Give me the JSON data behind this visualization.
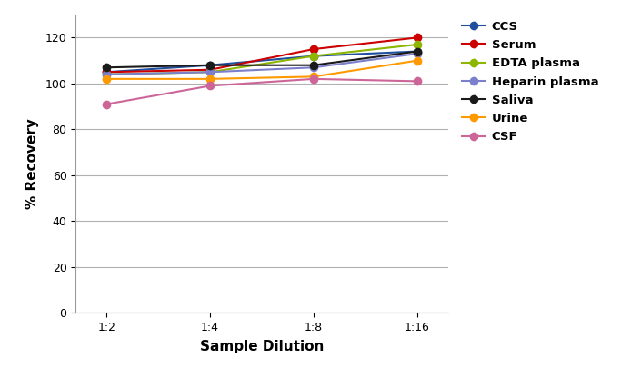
{
  "x_labels": [
    "1:2",
    "1:4",
    "1:8",
    "1:16"
  ],
  "x_values": [
    0,
    1,
    2,
    3
  ],
  "series": [
    {
      "name": "CCS",
      "color": "#1F4E9D",
      "marker": "o",
      "values": [
        105,
        108,
        112,
        114
      ]
    },
    {
      "name": "Serum",
      "color": "#CC0000",
      "marker": "o",
      "values": [
        105,
        106,
        115,
        120
      ]
    },
    {
      "name": "EDTA plasma",
      "color": "#8DB600",
      "marker": "o",
      "values": [
        104,
        105,
        112,
        117
      ]
    },
    {
      "name": "Heparin plasma",
      "color": "#7B7FCC",
      "marker": "o",
      "values": [
        104,
        105,
        107,
        113
      ]
    },
    {
      "name": "Saliva",
      "color": "#1A1A1A",
      "marker": "o",
      "values": [
        107,
        108,
        108,
        114
      ]
    },
    {
      "name": "Urine",
      "color": "#FF9900",
      "marker": "o",
      "values": [
        102,
        102,
        103,
        110
      ]
    },
    {
      "name": "CSF",
      "color": "#CC6699",
      "marker": "o",
      "values": [
        91,
        99,
        102,
        101
      ]
    }
  ],
  "ylabel": "% Recovery",
  "xlabel": "Sample Dilution",
  "ylim": [
    0,
    130
  ],
  "yticks": [
    0,
    20,
    40,
    60,
    80,
    100,
    120
  ],
  "background_color": "#ffffff",
  "plot_bg_color": "#ffffff",
  "grid_color": "#b0b0b0",
  "linewidth": 1.5,
  "markersize": 6
}
